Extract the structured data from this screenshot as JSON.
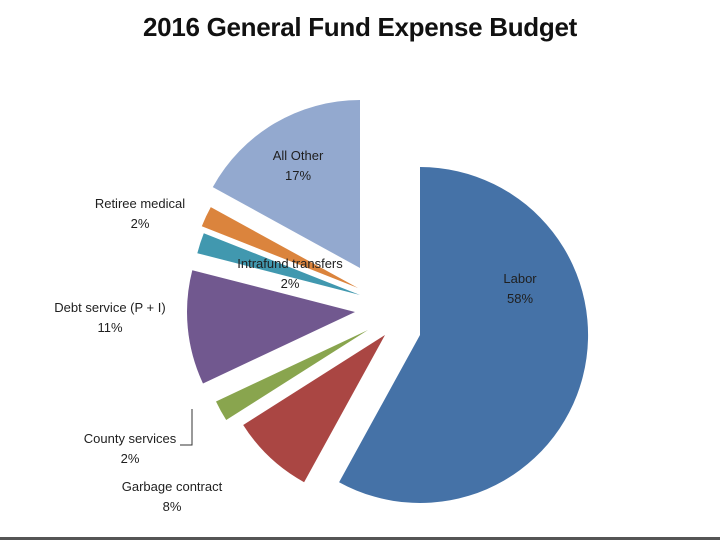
{
  "chart_data": {
    "type": "pie",
    "title": "2016 General Fund Expense Budget",
    "slices": [
      {
        "name": "Labor",
        "value": 58,
        "label_pct": "58%",
        "color": "#4572a7"
      },
      {
        "name": "Garbage contract",
        "value": 8,
        "label_pct": "8%",
        "color": "#aa4643"
      },
      {
        "name": "County services",
        "value": 2,
        "label_pct": "2%",
        "color": "#89a54e"
      },
      {
        "name": "Debt service (P + I)",
        "value": 11,
        "label_pct": "11%",
        "color": "#71588f"
      },
      {
        "name": "Intrafund transfers",
        "value": 2,
        "label_pct": "2%",
        "color": "#4198af"
      },
      {
        "name": "Retiree medical",
        "value": 2,
        "label_pct": "2%",
        "color": "#db843d"
      },
      {
        "name": "All Other",
        "value": 17,
        "label_pct": "17%",
        "color": "#93a9cf"
      }
    ],
    "exploded": true,
    "legend": "none"
  }
}
